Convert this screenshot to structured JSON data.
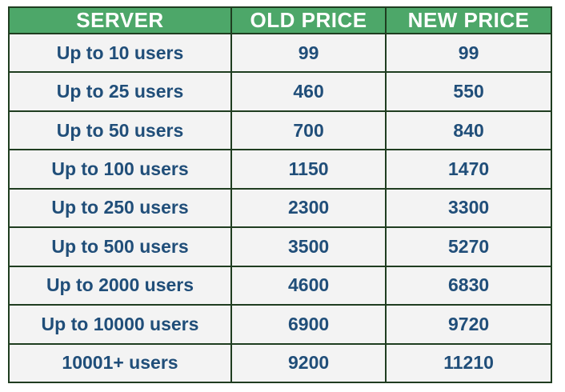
{
  "colors": {
    "header_bg": "#4da769",
    "header_text": "#ffffff",
    "row_bg": "#f3f3f3",
    "cell_text": "#204e79",
    "grid_border": "#1f3d20",
    "page_bg": "#ffffff"
  },
  "chart_data": {
    "type": "table",
    "title": "",
    "columns": [
      "SERVER",
      "OLD PRICE",
      "NEW PRICE"
    ],
    "rows": [
      [
        "Up to 10 users",
        99,
        99
      ],
      [
        "Up to 25 users",
        460,
        550
      ],
      [
        "Up to 50 users",
        700,
        840
      ],
      [
        "Up to 100 users",
        1150,
        1470
      ],
      [
        "Up to 250 users",
        2300,
        3300
      ],
      [
        "Up to 500 users",
        3500,
        5270
      ],
      [
        "Up to 2000 users",
        4600,
        6830
      ],
      [
        "Up to 10000 users",
        6900,
        9720
      ],
      [
        "10001+ users",
        9200,
        11210
      ]
    ]
  }
}
